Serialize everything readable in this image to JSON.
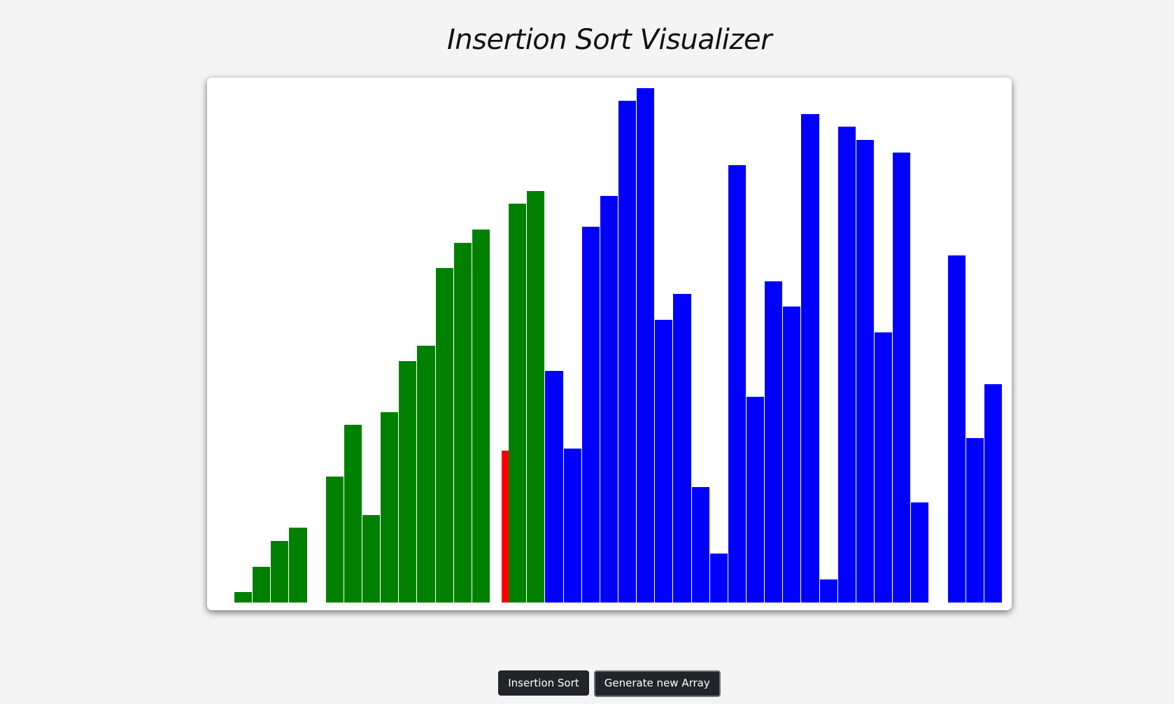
{
  "page": {
    "title": "Insertion Sort Visualizer"
  },
  "buttons": {
    "insertion_sort": "Insertion Sort",
    "generate_array": "Generate new Array"
  },
  "colors": {
    "sorted": "#008000",
    "active": "#ff0000",
    "unsorted": "#0000ff",
    "gap": "#ffffff"
  },
  "chart_data": {
    "type": "bar",
    "ylim": [
      0,
      100
    ],
    "values": [
      2,
      7,
      12,
      14.5,
      0,
      24.5,
      34.5,
      17,
      37,
      47,
      50,
      65,
      70,
      72.5,
      0,
      77.5,
      80,
      45,
      30,
      73,
      79,
      97.5,
      100,
      55,
      60,
      22.5,
      9.5,
      85,
      40,
      62.5,
      57.5,
      95,
      4.5,
      92.5,
      90,
      52.5,
      87.5,
      19.5,
      0,
      67.5,
      32,
      42.5
    ],
    "states": [
      "sorted",
      "sorted",
      "sorted",
      "sorted",
      "sorted",
      "sorted",
      "sorted",
      "sorted",
      "sorted",
      "sorted",
      "sorted",
      "sorted",
      "sorted",
      "sorted",
      "active",
      "sorted",
      "sorted",
      "unsorted",
      "unsorted",
      "unsorted",
      "unsorted",
      "unsorted",
      "unsorted",
      "unsorted",
      "unsorted",
      "unsorted",
      "unsorted",
      "unsorted",
      "unsorted",
      "unsorted",
      "unsorted",
      "unsorted",
      "unsorted",
      "unsorted",
      "unsorted",
      "unsorted",
      "unsorted",
      "unsorted",
      "unsorted",
      "unsorted",
      "unsorted",
      "unsorted"
    ],
    "active_value": 29.5
  }
}
